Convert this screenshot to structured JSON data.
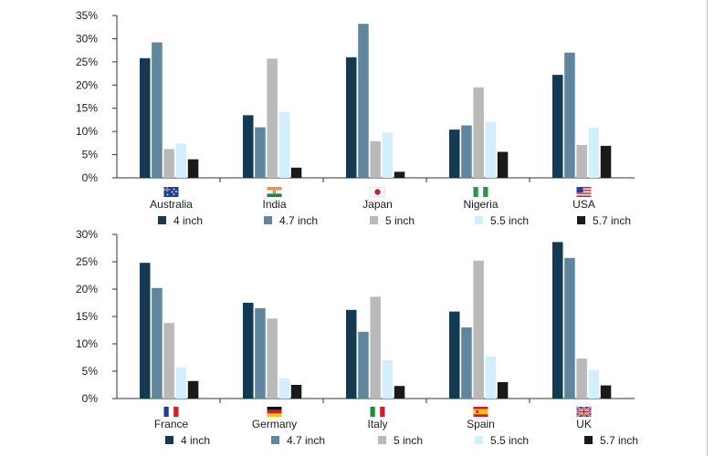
{
  "colors": {
    "4 inch": "#123a52",
    "4.7 inch": "#5f869c",
    "5 inch": "#b9b9b9",
    "5.5 inch": "#d3efff",
    "5.7 inch": "#1a1a1a"
  },
  "chart_data": [
    {
      "type": "bar",
      "title": "",
      "xlabel": "",
      "ylabel": "",
      "ylim": [
        0,
        35
      ],
      "yticks": [
        "0%",
        "5%",
        "10%",
        "15%",
        "20%",
        "25%",
        "30%",
        "35%"
      ],
      "categories": [
        "Australia",
        "India",
        "Japan",
        "Nigeria",
        "USA"
      ],
      "flag_icons": [
        "australia-flag-icon",
        "india-flag-icon",
        "japan-flag-icon",
        "nigeria-flag-icon",
        "usa-flag-icon"
      ],
      "legend": "bottom",
      "series": [
        {
          "name": "4 inch",
          "values": [
            25.8,
            13.5,
            26.0,
            10.4,
            22.2
          ]
        },
        {
          "name": "4.7 inch",
          "values": [
            29.2,
            10.9,
            33.2,
            11.3,
            27.0
          ]
        },
        {
          "name": "5 inch",
          "values": [
            6.2,
            25.7,
            7.9,
            19.5,
            7.1
          ]
        },
        {
          "name": "5.5 inch",
          "values": [
            7.4,
            14.2,
            9.8,
            12.1,
            10.8
          ]
        },
        {
          "name": "5.7 inch",
          "values": [
            4.0,
            2.2,
            1.3,
            5.6,
            6.9
          ]
        }
      ]
    },
    {
      "type": "bar",
      "title": "",
      "xlabel": "",
      "ylabel": "",
      "ylim": [
        0,
        30
      ],
      "yticks": [
        "0%",
        "5%",
        "10%",
        "15%",
        "20%",
        "25%",
        "30%"
      ],
      "categories": [
        "France",
        "Germany",
        "Italy",
        "Spain",
        "UK"
      ],
      "flag_icons": [
        "france-flag-icon",
        "germany-flag-icon",
        "italy-flag-icon",
        "spain-flag-icon",
        "uk-flag-icon"
      ],
      "legend": "bottom",
      "series": [
        {
          "name": "4 inch",
          "values": [
            24.8,
            17.5,
            16.2,
            15.9,
            28.6
          ]
        },
        {
          "name": "4.7 inch",
          "values": [
            20.2,
            16.5,
            12.2,
            13.0,
            25.7
          ]
        },
        {
          "name": "5 inch",
          "values": [
            13.8,
            14.6,
            18.6,
            25.2,
            7.3
          ]
        },
        {
          "name": "5.5 inch",
          "values": [
            5.7,
            3.7,
            7.0,
            7.7,
            5.2
          ]
        },
        {
          "name": "5.7 inch",
          "values": [
            3.2,
            2.5,
            2.3,
            3.0,
            2.4
          ]
        }
      ]
    }
  ]
}
